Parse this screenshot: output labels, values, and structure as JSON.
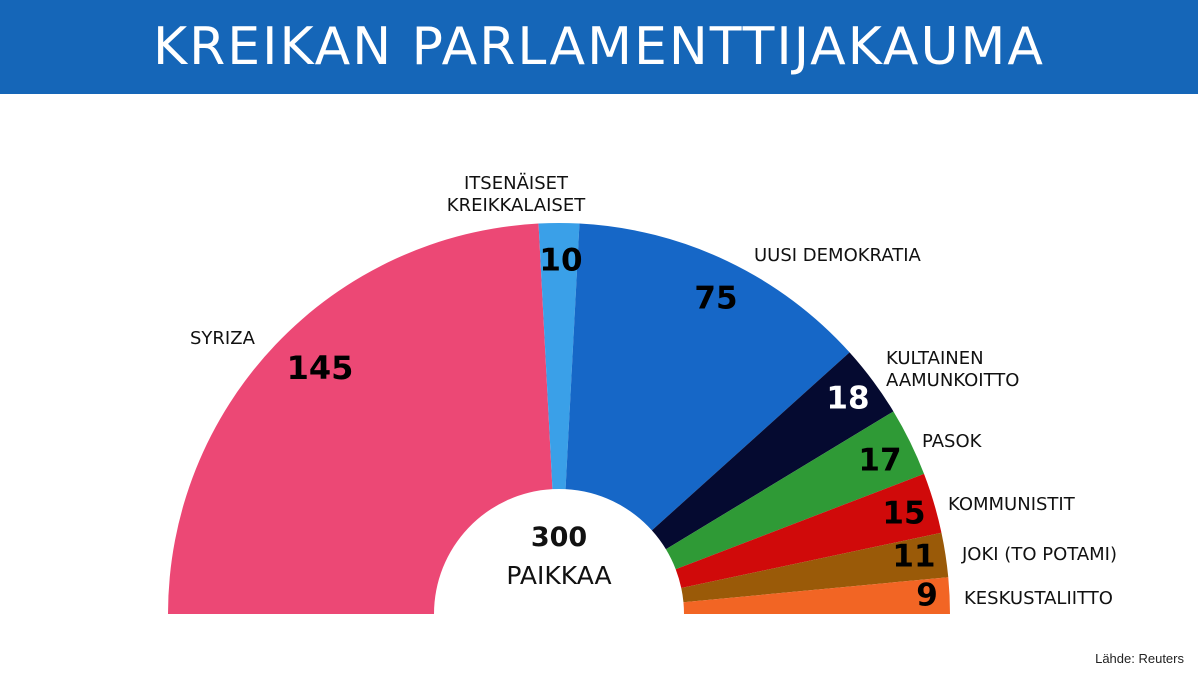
{
  "header": {
    "title": "KREIKAN PARLAMENTTIJAKAUMA",
    "background": "#1566b8"
  },
  "source": "Lähde: Reuters",
  "chart_data": {
    "type": "pie",
    "subtype": "half-donut parliament",
    "title": "KREIKAN PARLAMENTTIJAKAUMA",
    "total": {
      "value": "300",
      "label": "PAIKKAA"
    },
    "series": [
      {
        "name": "SYRIZA",
        "value": 145,
        "color": "#ec4875",
        "label_color": "#000000"
      },
      {
        "name": "ITSENÄISET KREIKKALAISET",
        "lines": [
          "ITSENÄISET",
          "KREIKKALAISET"
        ],
        "value": 10,
        "color": "#3aa0e8",
        "label_color": "#000000"
      },
      {
        "name": "UUSI DEMOKRATIA",
        "value": 75,
        "color": "#1667c7",
        "label_color": "#000000"
      },
      {
        "name": "KULTAINEN AAMUNKOITTO",
        "lines": [
          "KULTAINEN",
          "AAMUNKOITTO"
        ],
        "value": 18,
        "color": "#050a30",
        "label_color": "#ffffff"
      },
      {
        "name": "PASOK",
        "value": 17,
        "color": "#2f9a36",
        "label_color": "#000000"
      },
      {
        "name": "KOMMUNISTIT",
        "value": 15,
        "color": "#d00a0a",
        "label_color": "#000000"
      },
      {
        "name": "JOKI (TO POTAMI)",
        "value": 11,
        "color": "#9a5a08",
        "label_color": "#000000"
      },
      {
        "name": "KESKUSTALIITTO",
        "value": 9,
        "color": "#f26524",
        "label_color": "#000000"
      }
    ]
  }
}
